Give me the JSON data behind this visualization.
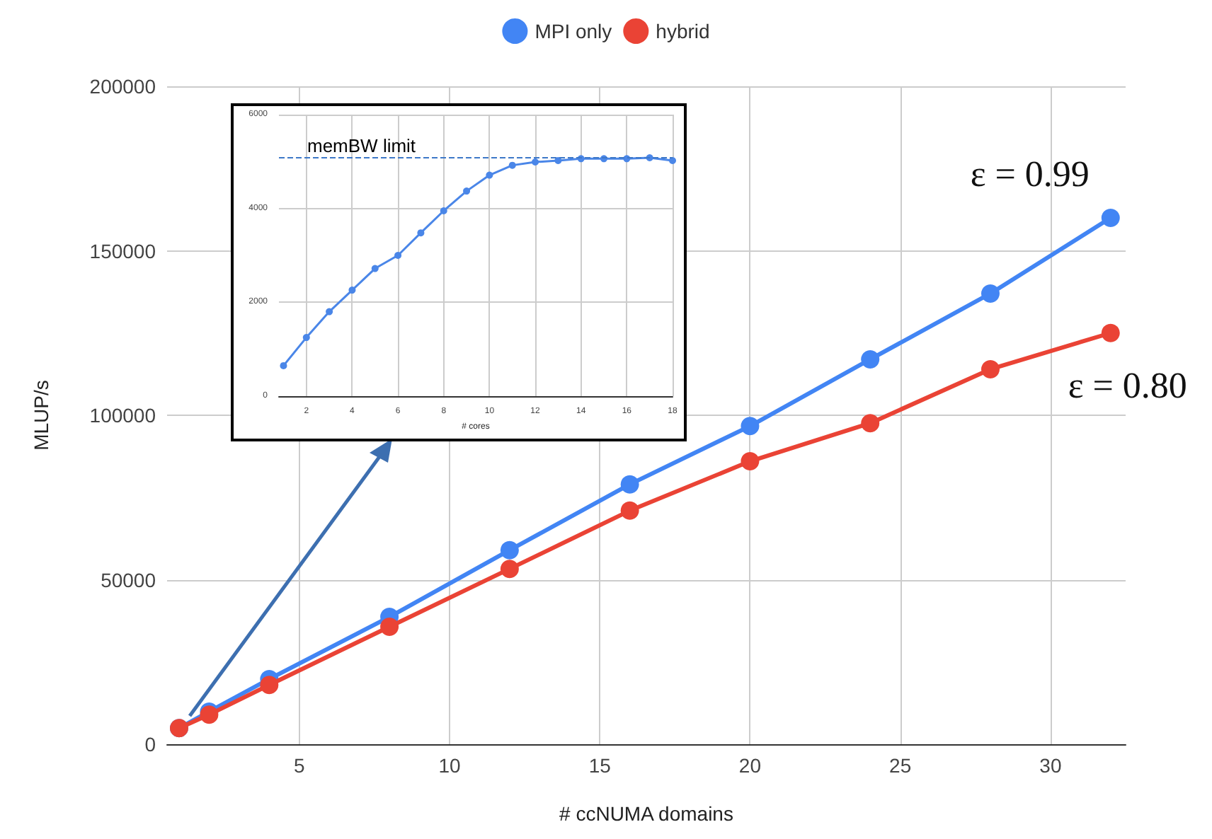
{
  "chart_data": [
    {
      "type": "line",
      "xlabel": "# ccNUMA domains",
      "ylabel": "MLUP/s",
      "x": [
        1,
        2,
        4,
        8,
        12,
        16,
        20,
        24,
        28,
        32
      ],
      "series": [
        {
          "name": "MPI only",
          "color": "#4285f4",
          "values": [
            4900,
            9900,
            19800,
            38700,
            59000,
            79000,
            96700,
            117000,
            137000,
            160000
          ]
        },
        {
          "name": "hybrid",
          "color": "#ea4335",
          "values": [
            4900,
            9000,
            18000,
            35700,
            53300,
            71000,
            86000,
            97600,
            114000,
            125000
          ]
        }
      ],
      "xlim": [
        0.6,
        32.5
      ],
      "ylim": [
        0,
        200000
      ],
      "xticks": [
        5,
        10,
        15,
        20,
        25,
        30
      ],
      "yticks": [
        0,
        50000,
        100000,
        150000,
        200000
      ],
      "grid": true,
      "legend": "top",
      "marker": "circle",
      "annotations": [
        "ε = 0.99",
        "ε = 0.80"
      ]
    },
    {
      "type": "line",
      "xlabel": "# cores",
      "x": [
        1,
        2,
        3,
        4,
        5,
        6,
        7,
        8,
        9,
        10,
        11,
        12,
        13,
        14,
        15,
        16,
        17,
        18
      ],
      "series": [
        {
          "color": "#4a86e8",
          "values": [
            650,
            1250,
            1800,
            2260,
            2720,
            3000,
            3480,
            3950,
            4370,
            4710,
            4920,
            4990,
            5020,
            5060,
            5060,
            5060,
            5080,
            5020
          ]
        }
      ],
      "xlim": [
        0.8,
        18
      ],
      "ylim": [
        0,
        6000
      ],
      "xticks": [
        2,
        4,
        6,
        8,
        10,
        12,
        14,
        16,
        18
      ],
      "yticks": [
        0,
        2000,
        4000,
        6000
      ],
      "grid": true,
      "marker": "circle",
      "ref_lines": [
        {
          "axis": "y",
          "value": 5080,
          "label": "memBW limit",
          "color": "#3d78c8",
          "line_style": "dashed"
        }
      ]
    }
  ]
}
